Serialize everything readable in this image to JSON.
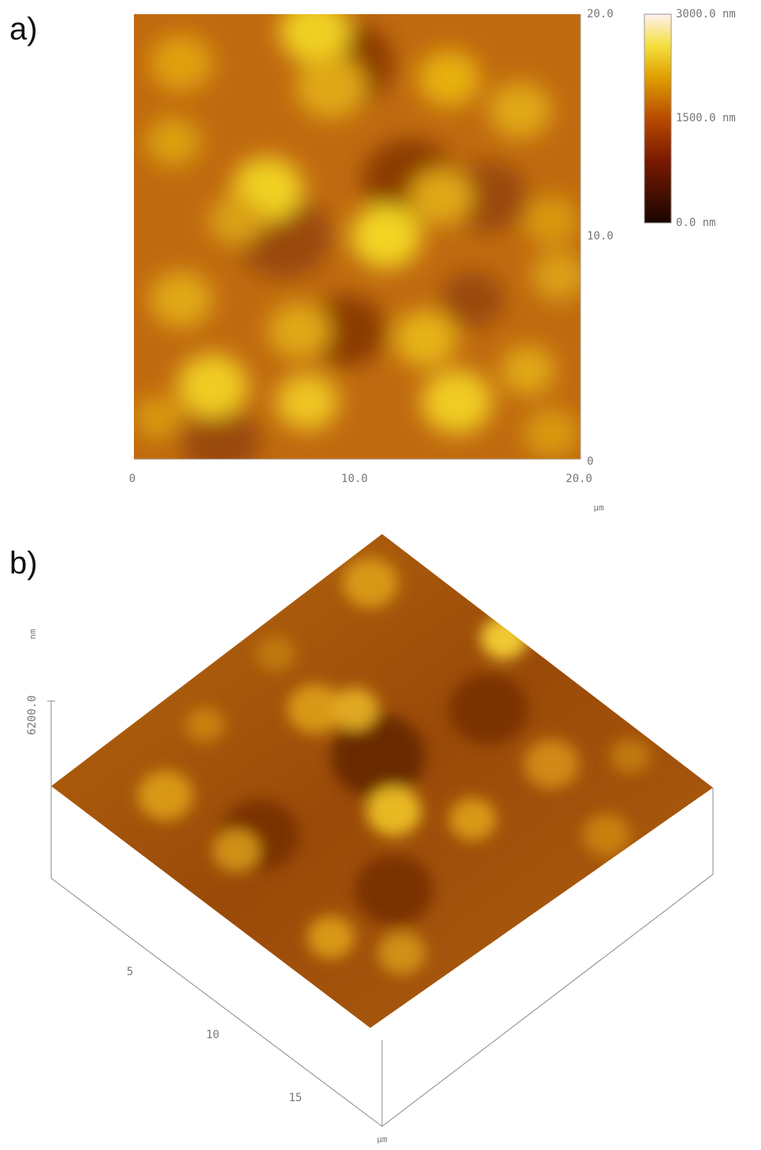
{
  "panel_a": {
    "label": "a)",
    "y_ticks": [
      "20.0",
      "10.0",
      "0"
    ],
    "x_ticks": [
      "0",
      "10.0",
      "20.0"
    ],
    "x_unit": "µm",
    "colorbar": [
      "3000.0 nm",
      "1500.0 nm",
      "0.0 nm"
    ]
  },
  "panel_b": {
    "label": "b)",
    "z_unit": "nm",
    "z_tick": "6200.0",
    "axis_ticks": [
      "5",
      "10",
      "15"
    ],
    "axis_unit": "µm"
  }
}
